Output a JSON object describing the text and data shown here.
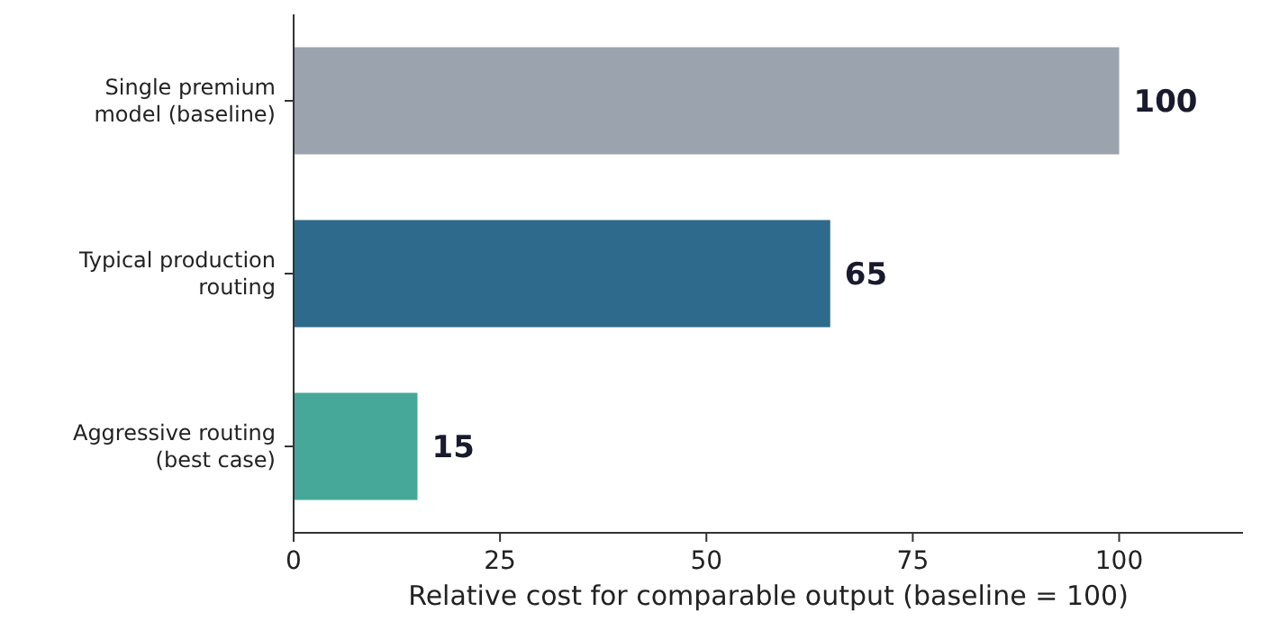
{
  "chart_data": {
    "type": "bar",
    "orientation": "horizontal",
    "xlabel": "Relative cost for comparable output (baseline = 100)",
    "categories": [
      "Single premium\nmodel (baseline)",
      "Typical production\nrouting",
      "Aggressive routing\n(best case)"
    ],
    "values": [
      100,
      65,
      15
    ],
    "colors": [
      "#9ba3ae",
      "#2e6a8b",
      "#46a898"
    ],
    "xlim": [
      0,
      115
    ],
    "xticks": [
      0,
      25,
      50,
      75,
      100
    ],
    "data_labels": true
  }
}
